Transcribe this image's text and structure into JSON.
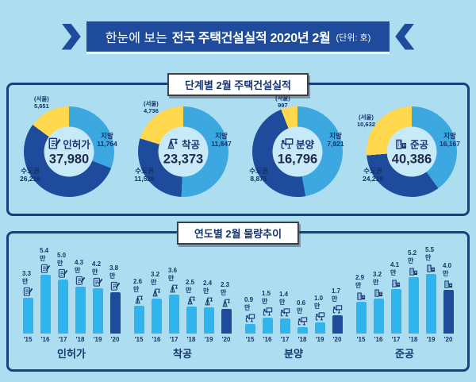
{
  "header": {
    "prefix": "한눈에 보는",
    "title": "전국 주택건설실적 2020년 2월",
    "unit": "(단위: 호)"
  },
  "sections": [
    {
      "title": "단계별 2월 주택건설실적"
    },
    {
      "title": "연도별 2월 물량추이"
    }
  ],
  "colors": {
    "background": "#ACDDF0",
    "navy": "#1E4B9B",
    "sky": "#3DA8E0",
    "bar_blue": "#2FB4EE",
    "yellow": "#FFD84D",
    "hole": "#C8E9F8",
    "text_navy": "#17366E",
    "panel_border": "#1B3F7E"
  },
  "chart_data": [
    {
      "type": "pie",
      "key": "permits",
      "name": "인허가",
      "icon": "permit-icon",
      "total": 37980,
      "segments": [
        {
          "label": "지방",
          "value": 11764,
          "color": "sky"
        },
        {
          "label": "수도권",
          "value": 26216,
          "color": "navy"
        },
        {
          "label": "(서울)",
          "value": 5651,
          "color": "yellow"
        }
      ]
    },
    {
      "type": "pie",
      "key": "starts",
      "name": "착공",
      "icon": "crane-icon",
      "total": 23373,
      "segments": [
        {
          "label": "지방",
          "value": 11847,
          "color": "sky"
        },
        {
          "label": "수도권",
          "value": 11526,
          "color": "navy"
        },
        {
          "label": "(서울)",
          "value": 4736,
          "color": "yellow"
        }
      ]
    },
    {
      "type": "pie",
      "key": "sales",
      "name": "분양",
      "icon": "presenter-icon",
      "total": 16796,
      "segments": [
        {
          "label": "지방",
          "value": 7921,
          "color": "sky"
        },
        {
          "label": "수도권",
          "value": 8875,
          "color": "navy"
        },
        {
          "label": "(서울)",
          "value": 997,
          "color": "yellow"
        }
      ]
    },
    {
      "type": "pie",
      "key": "completions",
      "name": "준공",
      "icon": "buildings-icon",
      "total": 40386,
      "segments": [
        {
          "label": "지방",
          "value": 16167,
          "color": "sky"
        },
        {
          "label": "수도권",
          "value": 24219,
          "color": "navy"
        },
        {
          "label": "(서울)",
          "value": 10632,
          "color": "yellow"
        }
      ]
    },
    {
      "type": "bar",
      "key": "permits",
      "name": "인허가",
      "icon": "permit-icon",
      "unit": "만",
      "categories": [
        "'15",
        "'16",
        "'17",
        "'18",
        "'19",
        "'20"
      ],
      "values": [
        3.3,
        5.4,
        5.0,
        4.3,
        4.2,
        3.8
      ],
      "highlight_index": 5,
      "ylim": [
        0,
        5.5
      ]
    },
    {
      "type": "bar",
      "key": "starts",
      "name": "착공",
      "icon": "crane-icon",
      "unit": "만",
      "categories": [
        "'15",
        "'16",
        "'17",
        "'18",
        "'19",
        "'20"
      ],
      "values": [
        2.6,
        3.2,
        3.6,
        2.5,
        2.4,
        2.3
      ],
      "highlight_index": 5,
      "ylim": [
        0,
        5.5
      ]
    },
    {
      "type": "bar",
      "key": "sales",
      "name": "분양",
      "icon": "presenter-icon",
      "unit": "만",
      "categories": [
        "'15",
        "'16",
        "'17",
        "'18",
        "'19",
        "'20"
      ],
      "values": [
        0.9,
        1.5,
        1.4,
        0.6,
        1.0,
        1.7
      ],
      "highlight_index": 5,
      "ylim": [
        0,
        5.5
      ]
    },
    {
      "type": "bar",
      "key": "completions",
      "name": "준공",
      "icon": "buildings-icon",
      "unit": "만",
      "categories": [
        "'15",
        "'16",
        "'17",
        "'18",
        "'19",
        "'20"
      ],
      "values": [
        2.9,
        3.2,
        4.1,
        5.2,
        5.5,
        4.0
      ],
      "highlight_index": 5,
      "ylim": [
        0,
        5.5
      ]
    }
  ]
}
